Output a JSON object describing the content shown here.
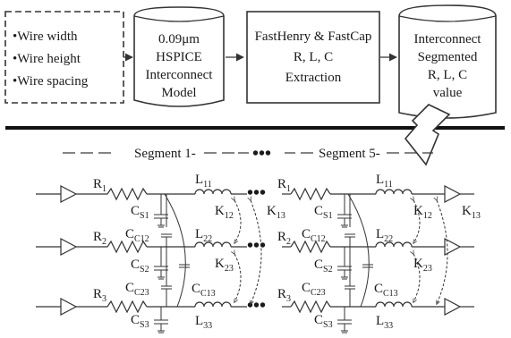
{
  "flow": {
    "params": [
      "•Wire width",
      "•Wire height",
      "•Wire spacing"
    ],
    "model": [
      "0.09μm",
      "HSPICE",
      "Interconnect",
      "Model"
    ],
    "extraction": [
      "FastHenry & FastCap",
      "R, L, C",
      "Extraction"
    ],
    "output": [
      "Interconnect",
      "Segmented",
      "R, L, C",
      "value"
    ]
  },
  "circuit": {
    "segment1": "Segment 1",
    "segment5": "Segment 5",
    "ellipsis": "•••",
    "resistors": [
      "R",
      "R",
      "R"
    ],
    "resistor_subs": [
      "1",
      "2",
      "3"
    ],
    "inductors": [
      "L",
      "L",
      "L"
    ],
    "inductor_subs": [
      "11",
      "22",
      "33"
    ],
    "self_caps": [
      "C",
      "C",
      "C"
    ],
    "self_cap_subs": [
      "S1",
      "S2",
      "S3"
    ],
    "coupling_caps": [
      "C",
      "C",
      "C"
    ],
    "coupling_cap_subs": [
      "C12",
      "C23",
      "C13"
    ],
    "mutual": [
      "K",
      "K",
      "K"
    ],
    "mutual_subs": [
      "12",
      "23",
      "13"
    ]
  }
}
